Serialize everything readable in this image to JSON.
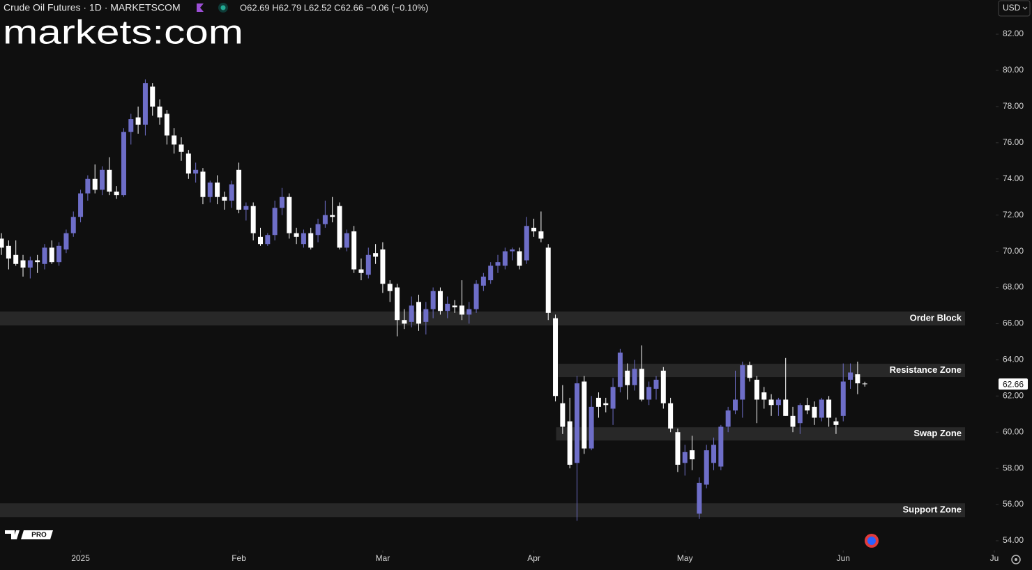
{
  "chart_data": {
    "type": "candlestick",
    "title": "Crude Oil Futures · 1D · MARKETSCOM",
    "legend_text": "O62.69 H62.79 L62.52 C62.66 −0.06 (−0.10%)",
    "logo": "markets:com",
    "badge": "PRO",
    "currency": "USD",
    "up_color": "#6e6ec8",
    "down_color": "#ffffff",
    "open": [
      70.7,
      70.3,
      69.8,
      69.5,
      69.1,
      69.5,
      69.3,
      70.2,
      69.4,
      70.1,
      71.0,
      71.9,
      73.2,
      74.0,
      73.4,
      74.5,
      73.3,
      73.1,
      76.6,
      77.4,
      77.0,
      79.1,
      78.0,
      77.6,
      76.4,
      75.9,
      75.4,
      74.3,
      74.4,
      73.0,
      73.8,
      73.0,
      72.8,
      74.5,
      72.3,
      72.5,
      70.8,
      70.4,
      70.9,
      72.4,
      73.0,
      71.0,
      70.4,
      71.0,
      70.9,
      71.5,
      72.0,
      72.5,
      70.2,
      71.1,
      69.0,
      68.7,
      69.9,
      70.1,
      68.2,
      68.0,
      66.2,
      66.1,
      67.2,
      66.1,
      66.8,
      67.8,
      66.7,
      67.0,
      67.0,
      66.5,
      66.8,
      68.1,
      68.4,
      69.2,
      69.2,
      70.0,
      70.0,
      69.5,
      71.3,
      71.1,
      70.2,
      66.3,
      61.6,
      60.6,
      58.3,
      62.8,
      59.1,
      61.9,
      61.6,
      61.3,
      62.5,
      63.4,
      62.6,
      63.5,
      61.8,
      62.4,
      63.4,
      61.6,
      60.0,
      58.3,
      59.0,
      55.5,
      57.1,
      58.3,
      58.1,
      60.3,
      61.2,
      61.8,
      63.7,
      62.9,
      62.2,
      61.8,
      61.5,
      61.8,
      60.9,
      60.5,
      61.5,
      61.4,
      60.8,
      61.8,
      60.6,
      60.9,
      62.9,
      63.2,
      62.69
    ],
    "high": [
      71.0,
      70.6,
      70.6,
      69.8,
      69.7,
      69.8,
      70.4,
      70.6,
      70.5,
      71.2,
      72.2,
      73.4,
      74.2,
      74.8,
      74.7,
      75.2,
      73.6,
      76.8,
      77.6,
      78.0,
      79.5,
      79.3,
      78.4,
      77.8,
      76.8,
      76.3,
      75.6,
      74.9,
      74.6,
      73.9,
      74.2,
      73.3,
      73.9,
      74.9,
      72.7,
      72.7,
      71.3,
      71.0,
      72.8,
      73.5,
      73.2,
      71.3,
      71.2,
      71.3,
      71.8,
      72.8,
      73.0,
      72.7,
      71.2,
      71.4,
      69.6,
      70.2,
      70.4,
      70.5,
      68.4,
      68.2,
      66.8,
      67.5,
      67.6,
      67.2,
      68.0,
      68.0,
      67.5,
      67.3,
      68.4,
      67.2,
      68.4,
      68.8,
      69.4,
      69.8,
      70.2,
      70.2,
      70.2,
      71.9,
      71.8,
      72.2,
      70.4,
      66.5,
      62.6,
      61.9,
      63.1,
      63.1,
      62.0,
      62.2,
      61.9,
      63.0,
      64.6,
      63.8,
      64.0,
      64.8,
      62.8,
      63.1,
      63.6,
      61.9,
      60.2,
      59.3,
      59.8,
      57.5,
      59.3,
      59.7,
      60.4,
      61.4,
      63.4,
      63.9,
      63.9,
      63.1,
      62.5,
      62.1,
      61.9,
      64.1,
      61.4,
      61.6,
      61.9,
      61.7,
      61.9,
      62.0,
      60.8,
      63.8,
      63.8,
      63.9,
      62.79
    ],
    "low": [
      69.8,
      69.0,
      69.2,
      68.6,
      68.5,
      68.8,
      69.0,
      69.3,
      69.2,
      69.9,
      70.8,
      71.6,
      72.8,
      73.2,
      73.1,
      73.1,
      72.9,
      73.0,
      75.9,
      76.5,
      76.4,
      77.5,
      77.0,
      75.9,
      75.4,
      75.0,
      74.0,
      73.8,
      72.6,
      72.7,
      72.6,
      72.3,
      72.4,
      72.1,
      71.7,
      70.6,
      70.3,
      70.3,
      70.6,
      72.0,
      70.7,
      70.4,
      70.2,
      70.1,
      70.5,
      71.3,
      71.6,
      70.1,
      70.0,
      68.8,
      68.4,
      68.5,
      69.3,
      67.7,
      67.2,
      65.3,
      65.7,
      65.8,
      65.6,
      65.4,
      66.3,
      66.5,
      66.3,
      66.6,
      66.2,
      66.0,
      66.6,
      67.8,
      68.2,
      68.8,
      69.0,
      69.5,
      69.0,
      69.3,
      70.8,
      70.5,
      66.2,
      61.7,
      59.9,
      58.0,
      55.1,
      58.8,
      59.0,
      60.8,
      61.1,
      60.4,
      62.2,
      61.8,
      62.3,
      61.7,
      61.5,
      61.8,
      61.3,
      60.0,
      57.8,
      57.6,
      57.9,
      55.2,
      56.9,
      57.9,
      57.9,
      60.0,
      61.0,
      60.8,
      62.8,
      60.5,
      61.3,
      60.9,
      60.9,
      60.9,
      60.0,
      59.9,
      61.0,
      60.4,
      60.6,
      60.3,
      59.9,
      60.6,
      62.4,
      62.1,
      62.52
    ],
    "close": [
      70.2,
      69.6,
      69.3,
      69.1,
      69.5,
      69.4,
      70.2,
      69.4,
      70.3,
      71.0,
      71.9,
      73.2,
      74.0,
      73.4,
      74.5,
      73.3,
      73.1,
      76.6,
      77.3,
      77.0,
      79.3,
      78.0,
      77.4,
      76.4,
      75.9,
      75.5,
      74.3,
      74.5,
      73.0,
      73.8,
      73.0,
      72.8,
      73.7,
      72.3,
      72.5,
      71.0,
      70.4,
      70.9,
      72.4,
      73.0,
      71.0,
      70.8,
      71.0,
      70.2,
      71.5,
      72.0,
      71.9,
      70.2,
      71.0,
      69.0,
      68.8,
      69.8,
      69.7,
      68.2,
      67.8,
      66.2,
      66.0,
      67.0,
      66.0,
      66.8,
      67.8,
      66.7,
      67.1,
      66.9,
      66.5,
      66.8,
      68.2,
      68.6,
      69.2,
      69.4,
      70.0,
      70.1,
      69.2,
      71.4,
      71.1,
      70.7,
      66.6,
      62.0,
      60.3,
      58.2,
      62.7,
      59.1,
      61.4,
      61.4,
      61.5,
      62.5,
      64.4,
      62.6,
      63.5,
      61.8,
      62.5,
      62.9,
      61.6,
      60.2,
      58.2,
      58.9,
      58.5,
      57.2,
      59.0,
      59.3,
      60.3,
      61.2,
      61.8,
      63.7,
      63.0,
      61.8,
      61.8,
      61.5,
      61.8,
      60.9,
      60.3,
      61.5,
      61.2,
      60.8,
      61.8,
      60.8,
      60.4,
      62.8,
      63.3,
      62.7,
      62.66
    ],
    "xlim": [
      -0.2,
      138.2
    ],
    "xticks": [
      {
        "value": 11,
        "label": "2025"
      },
      {
        "value": 33,
        "label": "Feb"
      },
      {
        "value": 53,
        "label": "Mar"
      },
      {
        "value": 74,
        "label": "Apr"
      },
      {
        "value": 95,
        "label": "May"
      },
      {
        "value": 117,
        "label": "Jun"
      },
      {
        "value": 138,
        "label": "Ju"
      }
    ],
    "ylim": [
      53.46,
      83.89
    ],
    "yticks": [
      {
        "value": 54,
        "label": "54.00"
      },
      {
        "value": 56,
        "label": "56.00"
      },
      {
        "value": 58,
        "label": "58.00"
      },
      {
        "value": 60,
        "label": "60.00"
      },
      {
        "value": 62,
        "label": "62.00"
      },
      {
        "value": 64,
        "label": "64.00"
      },
      {
        "value": 66,
        "label": "66.00"
      },
      {
        "value": 68,
        "label": "68.00"
      },
      {
        "value": 70,
        "label": "70.00"
      },
      {
        "value": 72,
        "label": "72.00"
      },
      {
        "value": 74,
        "label": "74.00"
      },
      {
        "value": 76,
        "label": "76.00"
      },
      {
        "value": 78,
        "label": "78.00"
      },
      {
        "value": 80,
        "label": "80.00"
      },
      {
        "value": 82,
        "label": "82.00"
      }
    ],
    "zones": [
      {
        "label": "Order Block",
        "low": 65.9,
        "high": 66.67
      },
      {
        "label": "Resistance Zone",
        "low": 63.05,
        "high": 63.78,
        "start": 77.4
      },
      {
        "label": "Swap Zone",
        "low": 59.54,
        "high": 60.27,
        "start": 77.1
      },
      {
        "label": "Support Zone",
        "low": 55.3,
        "high": 56.07
      }
    ]
  }
}
